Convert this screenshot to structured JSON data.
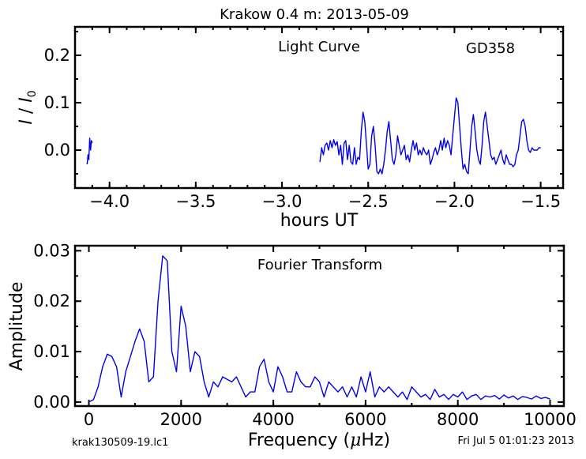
{
  "chart_data": [
    {
      "type": "line",
      "title": "Krakow 0.4 m:  2013-05-09",
      "annotations": [
        "Light Curve",
        "GD358"
      ],
      "ylabel_main": "I",
      "ylabel_sub": "0",
      "xlabel": "hours UT",
      "xlim": [
        -4.2,
        -1.37
      ],
      "ylim": [
        -0.08,
        0.26
      ],
      "xticks": [
        -4.0,
        -3.5,
        -3.0,
        -2.5,
        -2.0,
        -1.5
      ],
      "xtick_labels": [
        "−4.0",
        "−3.5",
        "−3.0",
        "−2.5",
        "−2.0",
        "−1.5"
      ],
      "yticks": [
        0.0,
        0.1,
        0.2
      ],
      "ytick_labels": [
        "0.0",
        "0.1",
        "0.2"
      ],
      "line_color": "#0000ee",
      "series": [
        {
          "x": [
            -4.13,
            -4.125,
            -4.12,
            -4.115,
            -4.11,
            -4.105,
            -4.1
          ],
          "y": [
            -0.03,
            -0.01,
            -0.02,
            0.025,
            0.0,
            0.02,
            0.015
          ]
        },
        {
          "x": [
            -2.78,
            -2.77,
            -2.76,
            -2.75,
            -2.74,
            -2.73,
            -2.72,
            -2.71,
            -2.7,
            -2.69,
            -2.68,
            -2.67,
            -2.66,
            -2.65,
            -2.64,
            -2.63,
            -2.62,
            -2.61,
            -2.6,
            -2.59,
            -2.58,
            -2.57,
            -2.56,
            -2.55,
            -2.54,
            -2.53,
            -2.52,
            -2.51,
            -2.5,
            -2.49,
            -2.48,
            -2.47,
            -2.46,
            -2.45,
            -2.44,
            -2.43,
            -2.42,
            -2.41,
            -2.4,
            -2.39,
            -2.38,
            -2.37,
            -2.36,
            -2.35,
            -2.34,
            -2.33,
            -2.32,
            -2.31,
            -2.3,
            -2.29,
            -2.28,
            -2.27,
            -2.26,
            -2.25,
            -2.24,
            -2.23,
            -2.22,
            -2.21,
            -2.2,
            -2.19,
            -2.18,
            -2.17,
            -2.16,
            -2.15,
            -2.14,
            -2.13,
            -2.12,
            -2.11,
            -2.1,
            -2.09,
            -2.08,
            -2.07,
            -2.06,
            -2.05,
            -2.04,
            -2.03,
            -2.02,
            -2.01,
            -2.0,
            -1.99,
            -1.98,
            -1.97,
            -1.96,
            -1.95,
            -1.94,
            -1.93,
            -1.92,
            -1.91,
            -1.9,
            -1.89,
            -1.88,
            -1.87,
            -1.86,
            -1.85,
            -1.84,
            -1.83,
            -1.82,
            -1.81,
            -1.8,
            -1.79,
            -1.78,
            -1.77,
            -1.76,
            -1.75,
            -1.74,
            -1.73,
            -1.72,
            -1.71,
            -1.7,
            -1.69,
            -1.68,
            -1.67,
            -1.66,
            -1.65,
            -1.64,
            -1.63,
            -1.62,
            -1.61,
            -1.6,
            -1.59,
            -1.58,
            -1.57,
            -1.56,
            -1.55,
            -1.54,
            -1.53,
            -1.52,
            -1.51,
            -1.5
          ],
          "y": [
            -0.025,
            0.005,
            -0.01,
            0.01,
            0.015,
            0.0,
            0.02,
            0.005,
            0.022,
            0.01,
            0.018,
            -0.01,
            0.01,
            -0.03,
            0.015,
            0.02,
            -0.02,
            0.01,
            -0.025,
            -0.03,
            0.005,
            -0.03,
            -0.015,
            -0.02,
            0.04,
            0.08,
            0.06,
            0.01,
            -0.04,
            -0.03,
            0.03,
            0.05,
            0.01,
            -0.045,
            -0.05,
            -0.04,
            -0.05,
            -0.03,
            0.0,
            0.04,
            0.06,
            0.02,
            -0.02,
            -0.03,
            -0.01,
            0.03,
            0.01,
            -0.01,
            0.0,
            0.01,
            -0.02,
            -0.01,
            -0.025,
            0.0,
            0.02,
            0.0,
            0.015,
            -0.01,
            0.0,
            -0.01,
            0.005,
            -0.005,
            -0.01,
            0.0,
            -0.03,
            -0.02,
            -0.005,
            0.005,
            -0.01,
            0.0,
            0.02,
            0.0,
            0.025,
            0.005,
            0.02,
            0.01,
            -0.01,
            0.03,
            0.07,
            0.11,
            0.1,
            0.05,
            0.0,
            -0.04,
            -0.03,
            -0.045,
            -0.05,
            0.0,
            0.05,
            0.075,
            0.04,
            0.0,
            -0.02,
            -0.03,
            0.01,
            0.06,
            0.08,
            0.05,
            0.02,
            -0.01,
            -0.02,
            -0.015,
            -0.03,
            -0.02,
            -0.01,
            0.0,
            -0.02,
            -0.03,
            -0.01,
            -0.02,
            -0.03,
            -0.03,
            -0.035,
            -0.03,
            -0.01,
            0.0,
            0.03,
            0.06,
            0.065,
            0.05,
            0.02,
            0.0,
            -0.005,
            0.005,
            0.0,
            0.0,
            0.0,
            0.005,
            0.005
          ]
        }
      ]
    },
    {
      "type": "line",
      "annotations": [
        "Fourier Transform"
      ],
      "ylabel": "Amplitude",
      "xlabel_main": "Frequency (",
      "xlabel_mu": "μ",
      "xlabel_unit": "Hz)",
      "xlim": [
        -300,
        10300
      ],
      "ylim": [
        -0.0008,
        0.031
      ],
      "xticks": [
        0,
        2000,
        4000,
        6000,
        8000,
        10000
      ],
      "xtick_labels": [
        "0",
        "2000",
        "4000",
        "6000",
        "8000",
        "10000"
      ],
      "yticks": [
        0.0,
        0.01,
        0.02,
        0.03
      ],
      "ytick_labels": [
        "0.00",
        "0.01",
        "0.02",
        "0.03"
      ],
      "line_color": "#0000ee",
      "series": [
        {
          "x": [
            0,
            100,
            200,
            300,
            400,
            500,
            600,
            700,
            800,
            900,
            1000,
            1100,
            1200,
            1300,
            1400,
            1500,
            1600,
            1700,
            1800,
            1900,
            2000,
            2100,
            2200,
            2300,
            2400,
            2500,
            2600,
            2700,
            2800,
            2900,
            3000,
            3100,
            3200,
            3300,
            3400,
            3500,
            3600,
            3700,
            3800,
            3900,
            4000,
            4100,
            4200,
            4300,
            4400,
            4500,
            4600,
            4700,
            4800,
            4900,
            5000,
            5100,
            5200,
            5300,
            5400,
            5500,
            5600,
            5700,
            5800,
            5900,
            6000,
            6100,
            6200,
            6300,
            6400,
            6500,
            6600,
            6700,
            6800,
            6900,
            7000,
            7100,
            7200,
            7300,
            7400,
            7500,
            7600,
            7700,
            7800,
            7900,
            8000,
            8100,
            8200,
            8300,
            8400,
            8500,
            8600,
            8700,
            8800,
            8900,
            9000,
            9100,
            9200,
            9300,
            9400,
            9500,
            9600,
            9700,
            9800,
            9900,
            10000
          ],
          "y": [
            0.0,
            0.0005,
            0.003,
            0.007,
            0.0095,
            0.009,
            0.007,
            0.001,
            0.006,
            0.009,
            0.012,
            0.0145,
            0.012,
            0.004,
            0.005,
            0.02,
            0.029,
            0.028,
            0.01,
            0.006,
            0.019,
            0.015,
            0.006,
            0.01,
            0.009,
            0.004,
            0.001,
            0.004,
            0.003,
            0.005,
            0.0045,
            0.004,
            0.005,
            0.003,
            0.001,
            0.002,
            0.002,
            0.007,
            0.0085,
            0.004,
            0.002,
            0.007,
            0.005,
            0.002,
            0.002,
            0.006,
            0.004,
            0.003,
            0.003,
            0.005,
            0.004,
            0.001,
            0.004,
            0.003,
            0.002,
            0.003,
            0.001,
            0.003,
            0.001,
            0.005,
            0.002,
            0.006,
            0.001,
            0.003,
            0.002,
            0.003,
            0.002,
            0.001,
            0.002,
            0.0005,
            0.003,
            0.002,
            0.001,
            0.0015,
            0.0005,
            0.0025,
            0.001,
            0.0015,
            0.0005,
            0.0015,
            0.001,
            0.002,
            0.0005,
            0.0012,
            0.0015,
            0.0005,
            0.0012,
            0.001,
            0.0013,
            0.0006,
            0.0014,
            0.0008,
            0.0012,
            0.0005,
            0.0011,
            0.0009,
            0.0006,
            0.0012,
            0.0007,
            0.0009,
            0.0006
          ]
        }
      ]
    }
  ],
  "footer": {
    "filename": "krak130509-19.lc1",
    "timestamp": "Fri Jul  5 01:01:23 2013"
  }
}
